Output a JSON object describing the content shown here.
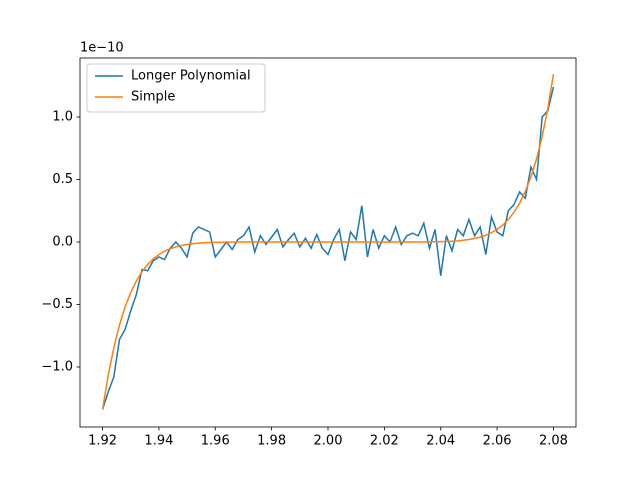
{
  "chart_data": {
    "type": "line",
    "offset_label": "1e−10",
    "x": [
      1.92,
      1.922,
      1.924,
      1.926,
      1.928,
      1.93,
      1.932,
      1.934,
      1.936,
      1.938,
      1.94,
      1.942,
      1.944,
      1.946,
      1.948,
      1.95,
      1.952,
      1.954,
      1.956,
      1.958,
      1.96,
      1.962,
      1.964,
      1.966,
      1.968,
      1.97,
      1.972,
      1.974,
      1.976,
      1.978,
      1.98,
      1.982,
      1.984,
      1.986,
      1.988,
      1.99,
      1.992,
      1.994,
      1.996,
      1.998,
      2.0,
      2.002,
      2.004,
      2.006,
      2.008,
      2.01,
      2.012,
      2.014,
      2.016,
      2.018,
      2.02,
      2.022,
      2.024,
      2.026,
      2.028,
      2.03,
      2.032,
      2.034,
      2.036,
      2.038,
      2.04,
      2.042,
      2.044,
      2.046,
      2.048,
      2.05,
      2.052,
      2.054,
      2.056,
      2.058,
      2.06,
      2.062,
      2.064,
      2.066,
      2.068,
      2.07,
      2.072,
      2.074,
      2.076,
      2.078,
      2.08
    ],
    "series": [
      {
        "name": "Longer Polynomial",
        "color": "#1f77b4",
        "values": [
          -1.34,
          -1.2,
          -1.08,
          -0.78,
          -0.7,
          -0.55,
          -0.42,
          -0.22,
          -0.23,
          -0.15,
          -0.12,
          -0.14,
          -0.05,
          0.0,
          -0.05,
          -0.12,
          0.07,
          0.12,
          0.1,
          0.08,
          -0.12,
          -0.06,
          0.0,
          -0.06,
          0.02,
          0.05,
          0.12,
          -0.08,
          0.05,
          -0.02,
          0.04,
          0.1,
          -0.04,
          0.02,
          0.07,
          -0.04,
          0.03,
          -0.05,
          0.06,
          -0.05,
          -0.1,
          0.02,
          0.1,
          -0.15,
          0.08,
          0.02,
          0.29,
          -0.12,
          0.1,
          -0.05,
          0.05,
          0.0,
          0.12,
          -0.02,
          0.05,
          0.07,
          0.05,
          0.15,
          -0.05,
          0.1,
          -0.27,
          0.05,
          -0.07,
          0.1,
          0.05,
          0.18,
          0.05,
          0.12,
          -0.1,
          0.2,
          0.08,
          0.05,
          0.25,
          0.3,
          0.4,
          0.35,
          0.6,
          0.5,
          1.0,
          1.05,
          1.24
        ]
      },
      {
        "name": "Simple",
        "color": "#ff7f0e",
        "values": [
          -1.342,
          -1.068,
          -0.846,
          -0.665,
          -0.52,
          -0.404,
          -0.311,
          -0.238,
          -0.18,
          -0.135,
          -0.101,
          -0.074,
          -0.054,
          -0.039,
          -0.028,
          -0.02,
          -0.014,
          -0.009,
          -0.006,
          -0.004,
          -0.003,
          -0.002,
          -0.001,
          -0.001,
          0,
          0,
          0,
          0,
          0,
          0,
          0,
          0,
          0,
          0,
          0,
          0,
          0,
          0,
          0,
          0,
          0,
          0,
          0,
          0,
          0,
          0,
          0,
          0,
          0,
          0,
          0,
          0,
          0,
          0,
          0,
          0,
          0,
          0.001,
          0.001,
          0.002,
          0.003,
          0.004,
          0.006,
          0.009,
          0.014,
          0.02,
          0.028,
          0.039,
          0.054,
          0.074,
          0.101,
          0.135,
          0.18,
          0.238,
          0.311,
          0.404,
          0.52,
          0.665,
          0.846,
          1.068,
          1.342
        ]
      }
    ],
    "xlim": [
      1.912,
      2.088
    ],
    "xticks": [
      1.92,
      1.94,
      1.96,
      1.98,
      {
        "value": 2.0,
        "label": "2.00"
      },
      2.02,
      2.04,
      2.06,
      2.08
    ],
    "ylim": [
      -1.48,
      1.472
    ],
    "yticks": [
      {
        "value": -1.0,
        "label": "−1.0"
      },
      {
        "value": -0.5,
        "label": "−0.5"
      },
      {
        "value": 0.0,
        "label": "0.0"
      },
      0.5,
      {
        "value": 1.0,
        "label": "1.0"
      }
    ],
    "legend": "upper left"
  }
}
